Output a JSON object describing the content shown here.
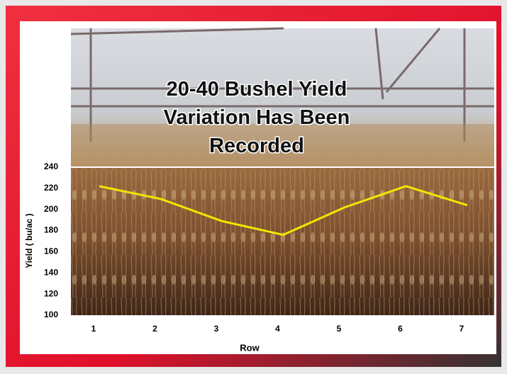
{
  "chart_data": {
    "type": "line",
    "title": "20-40 Bushel Yield Variation Has Been Recorded",
    "title_lines": [
      "20-40 Bushel Yield",
      "Variation Has Been",
      "Recorded"
    ],
    "categories": [
      "1",
      "2",
      "3",
      "4",
      "5",
      "6",
      "7"
    ],
    "values": [
      222,
      210,
      189,
      176,
      202,
      222,
      204
    ],
    "color": "#f2e600",
    "ylim": [
      100,
      240
    ],
    "yticks": [
      100,
      120,
      140,
      160,
      180,
      200,
      220,
      240
    ],
    "xlabel": "Row",
    "ylabel": "Yield ( bu/ac )"
  }
}
